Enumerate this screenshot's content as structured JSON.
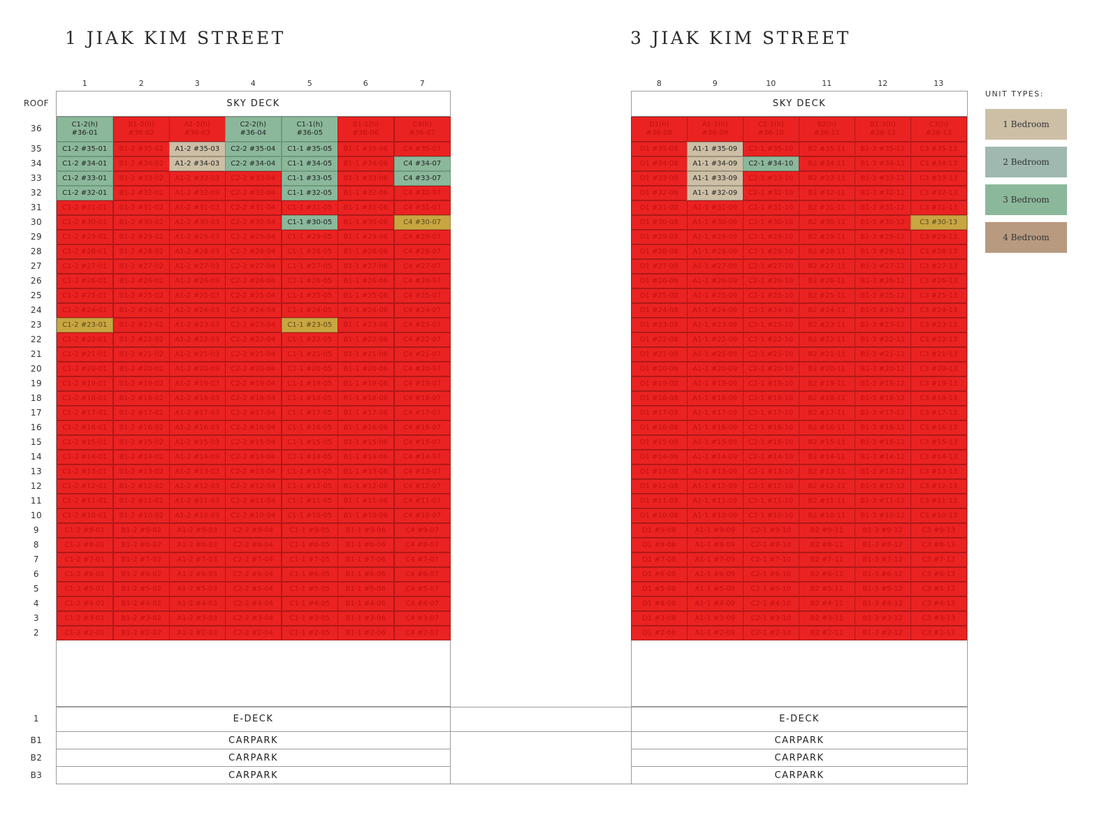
{
  "buildings": [
    {
      "title": "1 JIAK KIM STREET",
      "sky_deck": "SKY DECK",
      "e_deck": "E-DECK",
      "carpark": [
        "CARPARK",
        "CARPARK",
        "CARPARK"
      ]
    },
    {
      "title": "3 JIAK KIM STREET",
      "sky_deck": "SKY DECK",
      "e_deck": "E-DECK",
      "carpark": [
        "CARPARK",
        "CARPARK",
        "CARPARK"
      ]
    }
  ],
  "column_numbers": [
    "1",
    "2",
    "3",
    "4",
    "5",
    "6",
    "7",
    "8",
    "9",
    "10",
    "11",
    "12",
    "13"
  ],
  "floor_labels": {
    "roof": "ROOF",
    "e_deck": "1",
    "basements": [
      "B1",
      "B2",
      "B3"
    ]
  },
  "floors": [
    "36",
    "35",
    "34",
    "33",
    "32",
    "31",
    "30",
    "29",
    "28",
    "27",
    "26",
    "25",
    "24",
    "23",
    "22",
    "21",
    "20",
    "19",
    "18",
    "17",
    "16",
    "15",
    "14",
    "13",
    "12",
    "11",
    "10",
    "9",
    "8",
    "7",
    "6",
    "5",
    "4",
    "3",
    "2"
  ],
  "unit_types": [
    "C1-2",
    "B1-2",
    "A1-2",
    "C2-2",
    "C1-1",
    "B1-1",
    "C4",
    "D1",
    "A1-1",
    "C2-1",
    "B2",
    "B1-3",
    "C3"
  ],
  "penthouse_types": [
    "C1-2(h)",
    "B1-2(h)",
    "A1-2(h)",
    "C2-2(h)",
    "C1-1(h)",
    "B1-1(h)",
    "C4(h)",
    "D1(h)",
    "A1-1(h)",
    "C2-1(h)",
    "B2(h)",
    "B1-3(h)",
    "C3(h)"
  ],
  "unit_statuses": {
    "36": [
      "t3",
      "s",
      "s",
      "t3",
      "t3",
      "s",
      "s",
      "s",
      "s",
      "s",
      "s",
      "s",
      "s"
    ],
    "35": [
      "t3",
      "s",
      "t1",
      "t3",
      "t3",
      "s",
      "s",
      "s",
      "t1",
      "s",
      "s",
      "s",
      "s"
    ],
    "34": [
      "t3",
      "s",
      "t1",
      "t3",
      "t3",
      "s",
      "t3",
      "s",
      "t1",
      "t3",
      "s",
      "s",
      "s"
    ],
    "33": [
      "t3",
      "s",
      "s",
      "s",
      "t3",
      "s",
      "t3",
      "s",
      "t1",
      "s",
      "s",
      "s",
      "s"
    ],
    "32": [
      "t3",
      "s",
      "s",
      "s",
      "t3",
      "s",
      "s",
      "s",
      "t1",
      "s",
      "s",
      "s",
      "s"
    ],
    "30": [
      "s",
      "s",
      "s",
      "s",
      "t3",
      "s",
      "y",
      "s",
      "s",
      "s",
      "s",
      "s",
      "y"
    ],
    "23": [
      "y",
      "s",
      "s",
      "s",
      "y",
      "s",
      "s",
      "s",
      "s",
      "s",
      "s",
      "s",
      "s"
    ]
  },
  "legend": {
    "title": "UNIT TYPES:",
    "items": [
      {
        "label": "1 Bedroom",
        "color": "#ccbfa6"
      },
      {
        "label": "2 Bedroom",
        "color": "#a0b9b0"
      },
      {
        "label": "3 Bedroom",
        "color": "#8bb89b"
      },
      {
        "label": "4 Bedroom",
        "color": "#b89a80"
      }
    ]
  },
  "colors": {
    "sold": "#ea2222",
    "highlight": "#c8a642"
  }
}
